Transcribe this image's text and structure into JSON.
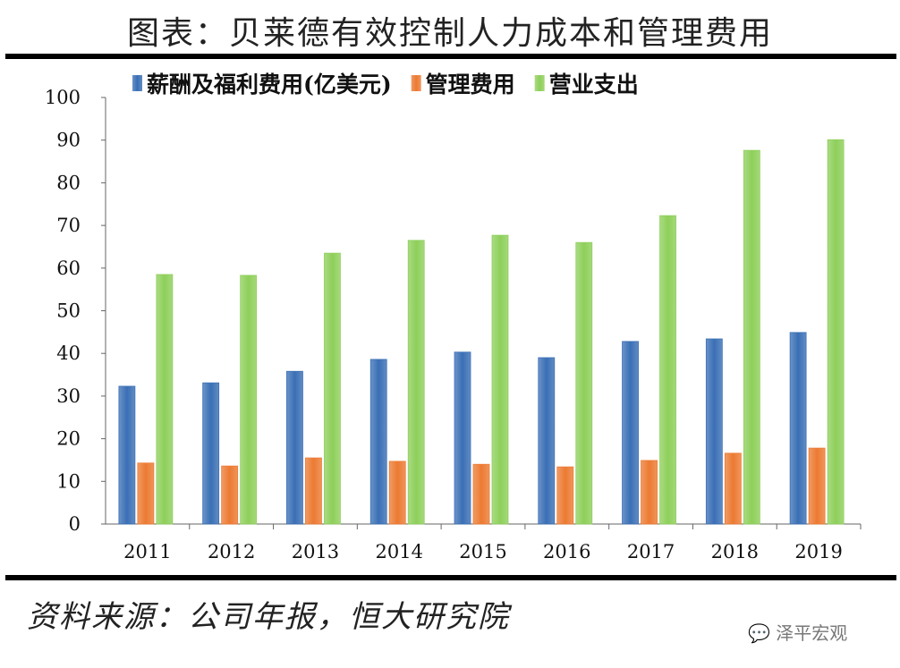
{
  "title": "图表：贝莱德有效控制人力成本和管理费用",
  "source": "资料来源：公司年报，恒大研究院",
  "watermark": "泽平宏观",
  "chart_data": {
    "type": "bar",
    "categories": [
      "2011",
      "2012",
      "2013",
      "2014",
      "2015",
      "2016",
      "2017",
      "2018",
      "2019"
    ],
    "series": [
      {
        "name": "薪酬及福利费用(亿美元)",
        "color": "#3a6fb5",
        "values": [
          32.3,
          33.1,
          35.8,
          38.6,
          40.3,
          39.0,
          42.8,
          43.4,
          44.9
        ]
      },
      {
        "name": "管理费用",
        "color": "#ec7a32",
        "values": [
          14.3,
          13.6,
          15.5,
          14.7,
          14.0,
          13.4,
          14.9,
          16.6,
          17.8
        ]
      },
      {
        "name": "营业支出",
        "color": "#8ecf5a",
        "values": [
          58.5,
          58.3,
          63.5,
          66.5,
          67.7,
          66.0,
          72.3,
          87.6,
          90.1
        ]
      }
    ],
    "ylim": [
      0,
      100
    ],
    "yticks": [
      "0",
      "10",
      "20",
      "30",
      "40",
      "50",
      "60",
      "70",
      "80",
      "90",
      "100"
    ],
    "legend": "top",
    "grid": false
  }
}
